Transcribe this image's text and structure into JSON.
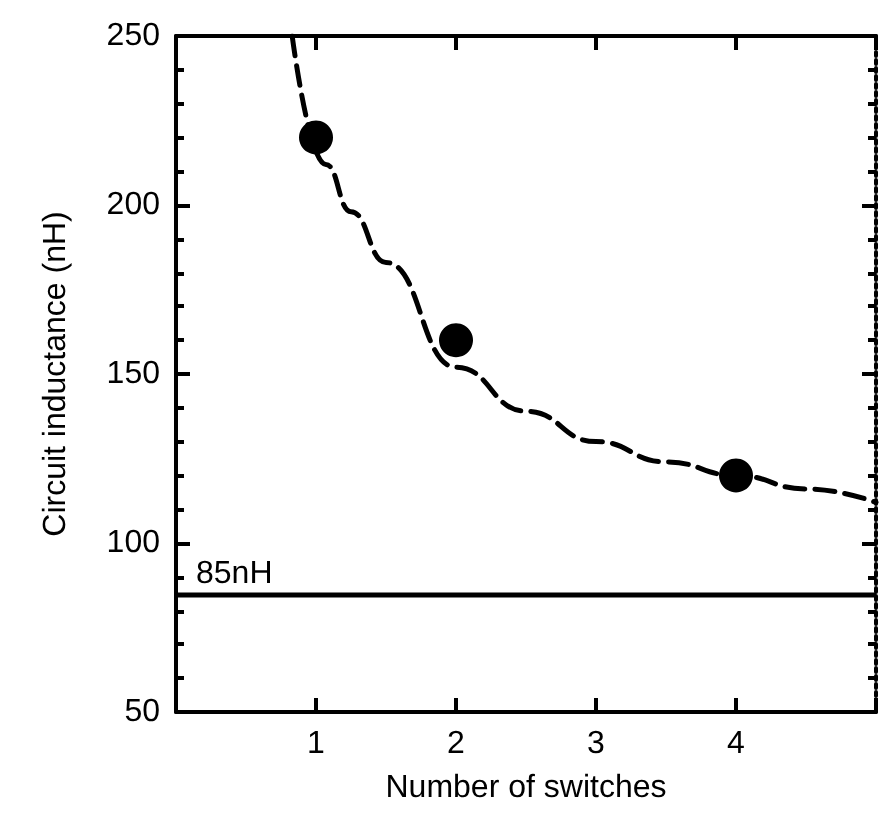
{
  "chart_data": {
    "type": "scatter",
    "xlabel": "Number of switches",
    "ylabel": "Circuit inductance (nH)",
    "xlim": [
      0,
      5
    ],
    "xticks": [
      {
        "value": 0,
        "label": null
      },
      1,
      2,
      3,
      4,
      {
        "value": 5,
        "label": null
      }
    ],
    "ylim": [
      50,
      250
    ],
    "yticks": [
      50,
      100,
      150,
      200,
      250
    ],
    "marker": "circle",
    "grid": false,
    "series": [
      {
        "color": "#000000",
        "x": [
          1,
          2,
          4
        ],
        "values": [
          220,
          160,
          120
        ]
      },
      {
        "type": "line",
        "color": "#000000",
        "line_style": "dashed",
        "marker": "none",
        "x": [
          0.83,
          1.07,
          1.25,
          1.5,
          2,
          2.5,
          3,
          3.5,
          4,
          4.5,
          5
        ],
        "values": [
          250,
          212,
          198,
          183,
          152,
          139,
          130,
          124,
          120,
          116,
          112
        ]
      }
    ],
    "ref_lines": [
      {
        "axis": "y",
        "value": 85,
        "label": "85nH",
        "color": "#000000"
      }
    ]
  }
}
